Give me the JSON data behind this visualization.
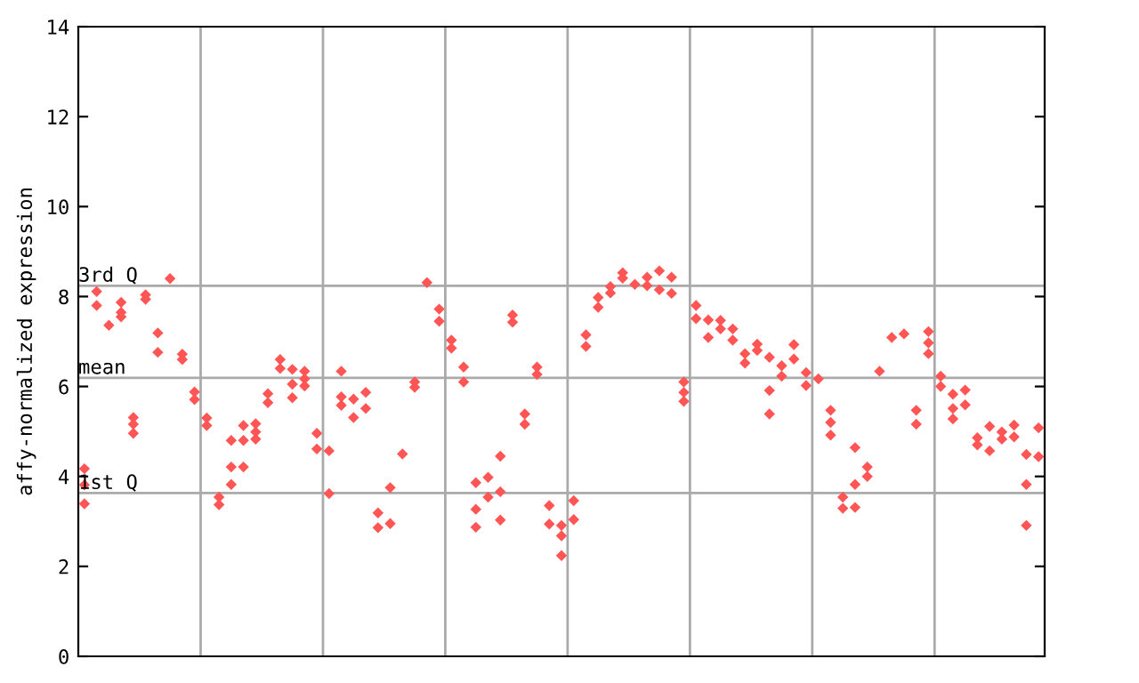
{
  "chart_data": {
    "type": "scatter",
    "ylabel": "affy-normalized expression",
    "categories": [
      null,
      null,
      null,
      null,
      null,
      null,
      null,
      null,
      null,
      null,
      null,
      null,
      null,
      null,
      null,
      null,
      null,
      null,
      null,
      null,
      null,
      null,
      null,
      null,
      null,
      null,
      null,
      null,
      null,
      null,
      null,
      null,
      null,
      null,
      null,
      null,
      null,
      null,
      null,
      null,
      null,
      null,
      null,
      null,
      null,
      null,
      null,
      null,
      null,
      null,
      null,
      null,
      null,
      null,
      null,
      null,
      null,
      null,
      null,
      null,
      null,
      null,
      null,
      null,
      null,
      null,
      null,
      null,
      null,
      null,
      null,
      null,
      null,
      null,
      null,
      null,
      null,
      null,
      null
    ],
    "ylim": [
      0,
      14
    ],
    "yticks": [
      0,
      2,
      4,
      6,
      8,
      10,
      12,
      14
    ],
    "marker": "diamond",
    "ref_lines": [
      {
        "axis": "y",
        "value": 8.24,
        "label": "3rd Q",
        "color": "#aaaaaa"
      },
      {
        "axis": "y",
        "value": 6.19,
        "label": "mean",
        "color": "#aaaaaa"
      },
      {
        "axis": "y",
        "value": 3.63,
        "label": "1st Q",
        "color": "#aaaaaa"
      }
    ],
    "grid": "x",
    "series": [
      {
        "color": "#ff5555",
        "values": [
          4.17,
          8.11,
          7.36,
          7.87,
          5.31,
          8.04,
          7.19,
          8.4,
          6.72,
          5.88,
          5.3,
          3.54,
          4.8,
          5.13,
          5.17,
          5.84,
          6.6,
          6.38,
          6.34,
          4.96,
          4.57,
          6.34,
          5.72,
          5.87,
          3.19,
          3.75,
          4.5,
          6.1,
          8.31,
          7.72,
          7.03,
          6.43,
          3.86,
          3.98,
          4.45,
          7.59,
          5.39,
          6.43,
          3.35,
          2.91,
          3.46,
          7.15,
          7.98,
          8.22,
          8.53,
          8.27,
          8.43,
          8.57,
          8.43,
          6.1,
          7.8,
          7.48,
          7.47,
          7.28,
          6.73,
          6.94,
          6.65,
          6.46,
          6.93,
          6.31,
          6.17,
          5.47,
          3.54,
          4.64,
          4.21,
          6.34,
          7.09,
          7.17,
          5.47,
          7.22,
          6.23,
          5.83,
          5.92,
          4.86,
          5.11,
          4.99,
          5.14,
          4.49,
          5.08
        ]
      },
      {
        "color": "#ff5555",
        "values": [
          3.81,
          7.8,
          null,
          7.65,
          5.16,
          7.94,
          6.76,
          null,
          6.6,
          5.71,
          5.13,
          3.37,
          4.21,
          4.8,
          4.99,
          5.64,
          6.4,
          6.05,
          6.17,
          4.61,
          3.62,
          5.77,
          5.31,
          5.51,
          2.86,
          2.95,
          null,
          5.98,
          null,
          7.45,
          6.85,
          6.1,
          3.27,
          3.54,
          3.66,
          7.43,
          5.16,
          6.27,
          2.94,
          2.68,
          3.04,
          6.89,
          7.76,
          8.08,
          8.41,
          null,
          8.24,
          8.15,
          8.07,
          5.87,
          7.51,
          7.09,
          7.28,
          7.03,
          6.52,
          6.8,
          5.91,
          6.23,
          6.61,
          6.02,
          null,
          5.2,
          3.29,
          3.82,
          4.0,
          null,
          null,
          null,
          5.16,
          6.97,
          6.0,
          5.51,
          5.59,
          4.7,
          4.57,
          4.83,
          4.88,
          3.82,
          4.44
        ]
      },
      {
        "color": "#ff5555",
        "values": [
          3.39,
          null,
          null,
          7.55,
          4.96,
          null,
          null,
          null,
          null,
          null,
          null,
          null,
          3.82,
          4.21,
          4.83,
          null,
          null,
          5.75,
          6.01,
          null,
          null,
          5.58,
          null,
          null,
          null,
          null,
          null,
          null,
          null,
          null,
          null,
          null,
          2.87,
          null,
          3.03,
          null,
          null,
          null,
          null,
          2.24,
          null,
          null,
          null,
          null,
          null,
          null,
          null,
          null,
          null,
          5.67,
          null,
          null,
          null,
          null,
          null,
          null,
          5.39,
          null,
          null,
          null,
          null,
          4.92,
          null,
          3.31,
          null,
          null,
          null,
          null,
          null,
          6.73,
          null,
          5.28,
          null,
          null,
          null,
          null,
          null,
          2.91,
          null
        ]
      }
    ]
  }
}
